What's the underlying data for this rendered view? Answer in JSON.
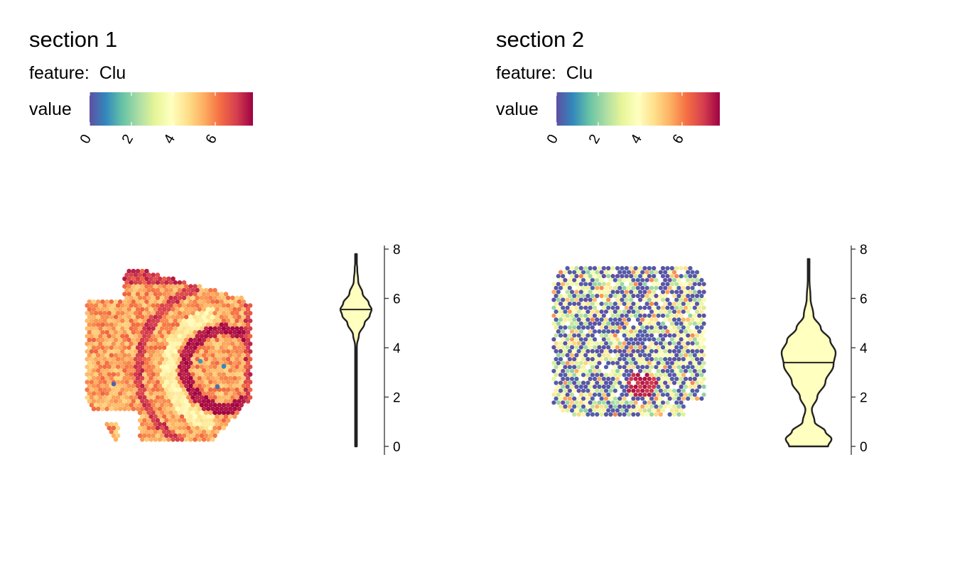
{
  "palette": [
    "#5E4FA2",
    "#3288BD",
    "#66C2A5",
    "#ABDDA4",
    "#E6F598",
    "#FFFFBF",
    "#FEE08B",
    "#FDAE61",
    "#F46D43",
    "#D53E4F",
    "#9E0142"
  ],
  "violin_fill": "#FFFFBF",
  "chart_data": [
    {
      "type": "scatter",
      "title": "section 1",
      "feature_prefix": "feature:",
      "feature": "Clu",
      "legend_title": "value",
      "colorbar": {
        "min": 0,
        "max": 7.8,
        "ticks": [
          "0",
          "2",
          "4",
          "6"
        ],
        "tick_values": [
          0,
          2,
          4,
          6
        ]
      },
      "spatial": {
        "shape": "brain coronal section",
        "dominant_value_range": [
          4.5,
          7.0
        ],
        "hotspot_value": 7.5,
        "low_outliers": [
          0.3,
          0.5,
          0.8,
          1.0
        ]
      },
      "violin": {
        "y_ticks": [
          "0",
          "2",
          "4",
          "6",
          "8"
        ],
        "y_tick_values": [
          0,
          2,
          4,
          6,
          8
        ],
        "ylim": [
          0,
          8
        ],
        "min": 0.0,
        "max": 7.8,
        "median": 5.55,
        "density": [
          [
            0.0,
            0.015
          ],
          [
            1.0,
            0.015
          ],
          [
            2.0,
            0.015
          ],
          [
            3.0,
            0.02
          ],
          [
            3.8,
            0.03
          ],
          [
            4.1,
            0.06
          ],
          [
            4.5,
            0.18
          ],
          [
            5.0,
            0.55
          ],
          [
            5.3,
            0.88
          ],
          [
            5.55,
            1.0
          ],
          [
            5.8,
            0.82
          ],
          [
            6.2,
            0.42
          ],
          [
            6.7,
            0.14
          ],
          [
            7.2,
            0.08
          ],
          [
            7.5,
            0.05
          ],
          [
            7.8,
            0.02
          ]
        ]
      }
    },
    {
      "type": "scatter",
      "title": "section 2",
      "feature_prefix": "feature:",
      "feature": "Clu",
      "legend_title": "value",
      "colorbar": {
        "min": 0,
        "max": 7.8,
        "ticks": [
          "0",
          "2",
          "4",
          "6"
        ],
        "tick_values": [
          0,
          2,
          4,
          6
        ]
      },
      "spatial": {
        "shape": "rounded square section",
        "zero_fraction": 0.45,
        "dominant_value_range": [
          2.0,
          4.5
        ],
        "hotspot_value": 7.0
      },
      "violin": {
        "y_ticks": [
          "0",
          "2",
          "4",
          "6",
          "8"
        ],
        "y_tick_values": [
          0,
          2,
          4,
          6,
          8
        ],
        "ylim": [
          0,
          8
        ],
        "min": 0.0,
        "max": 7.6,
        "median": 3.4,
        "density": [
          [
            0.0,
            0.72
          ],
          [
            0.3,
            0.85
          ],
          [
            0.6,
            0.62
          ],
          [
            1.0,
            0.22
          ],
          [
            1.5,
            0.12
          ],
          [
            2.0,
            0.32
          ],
          [
            2.6,
            0.62
          ],
          [
            3.3,
            0.92
          ],
          [
            3.8,
            1.0
          ],
          [
            4.3,
            0.8
          ],
          [
            4.8,
            0.45
          ],
          [
            5.3,
            0.18
          ],
          [
            6.0,
            0.07
          ],
          [
            6.8,
            0.03
          ],
          [
            7.6,
            0.01
          ]
        ]
      }
    }
  ]
}
